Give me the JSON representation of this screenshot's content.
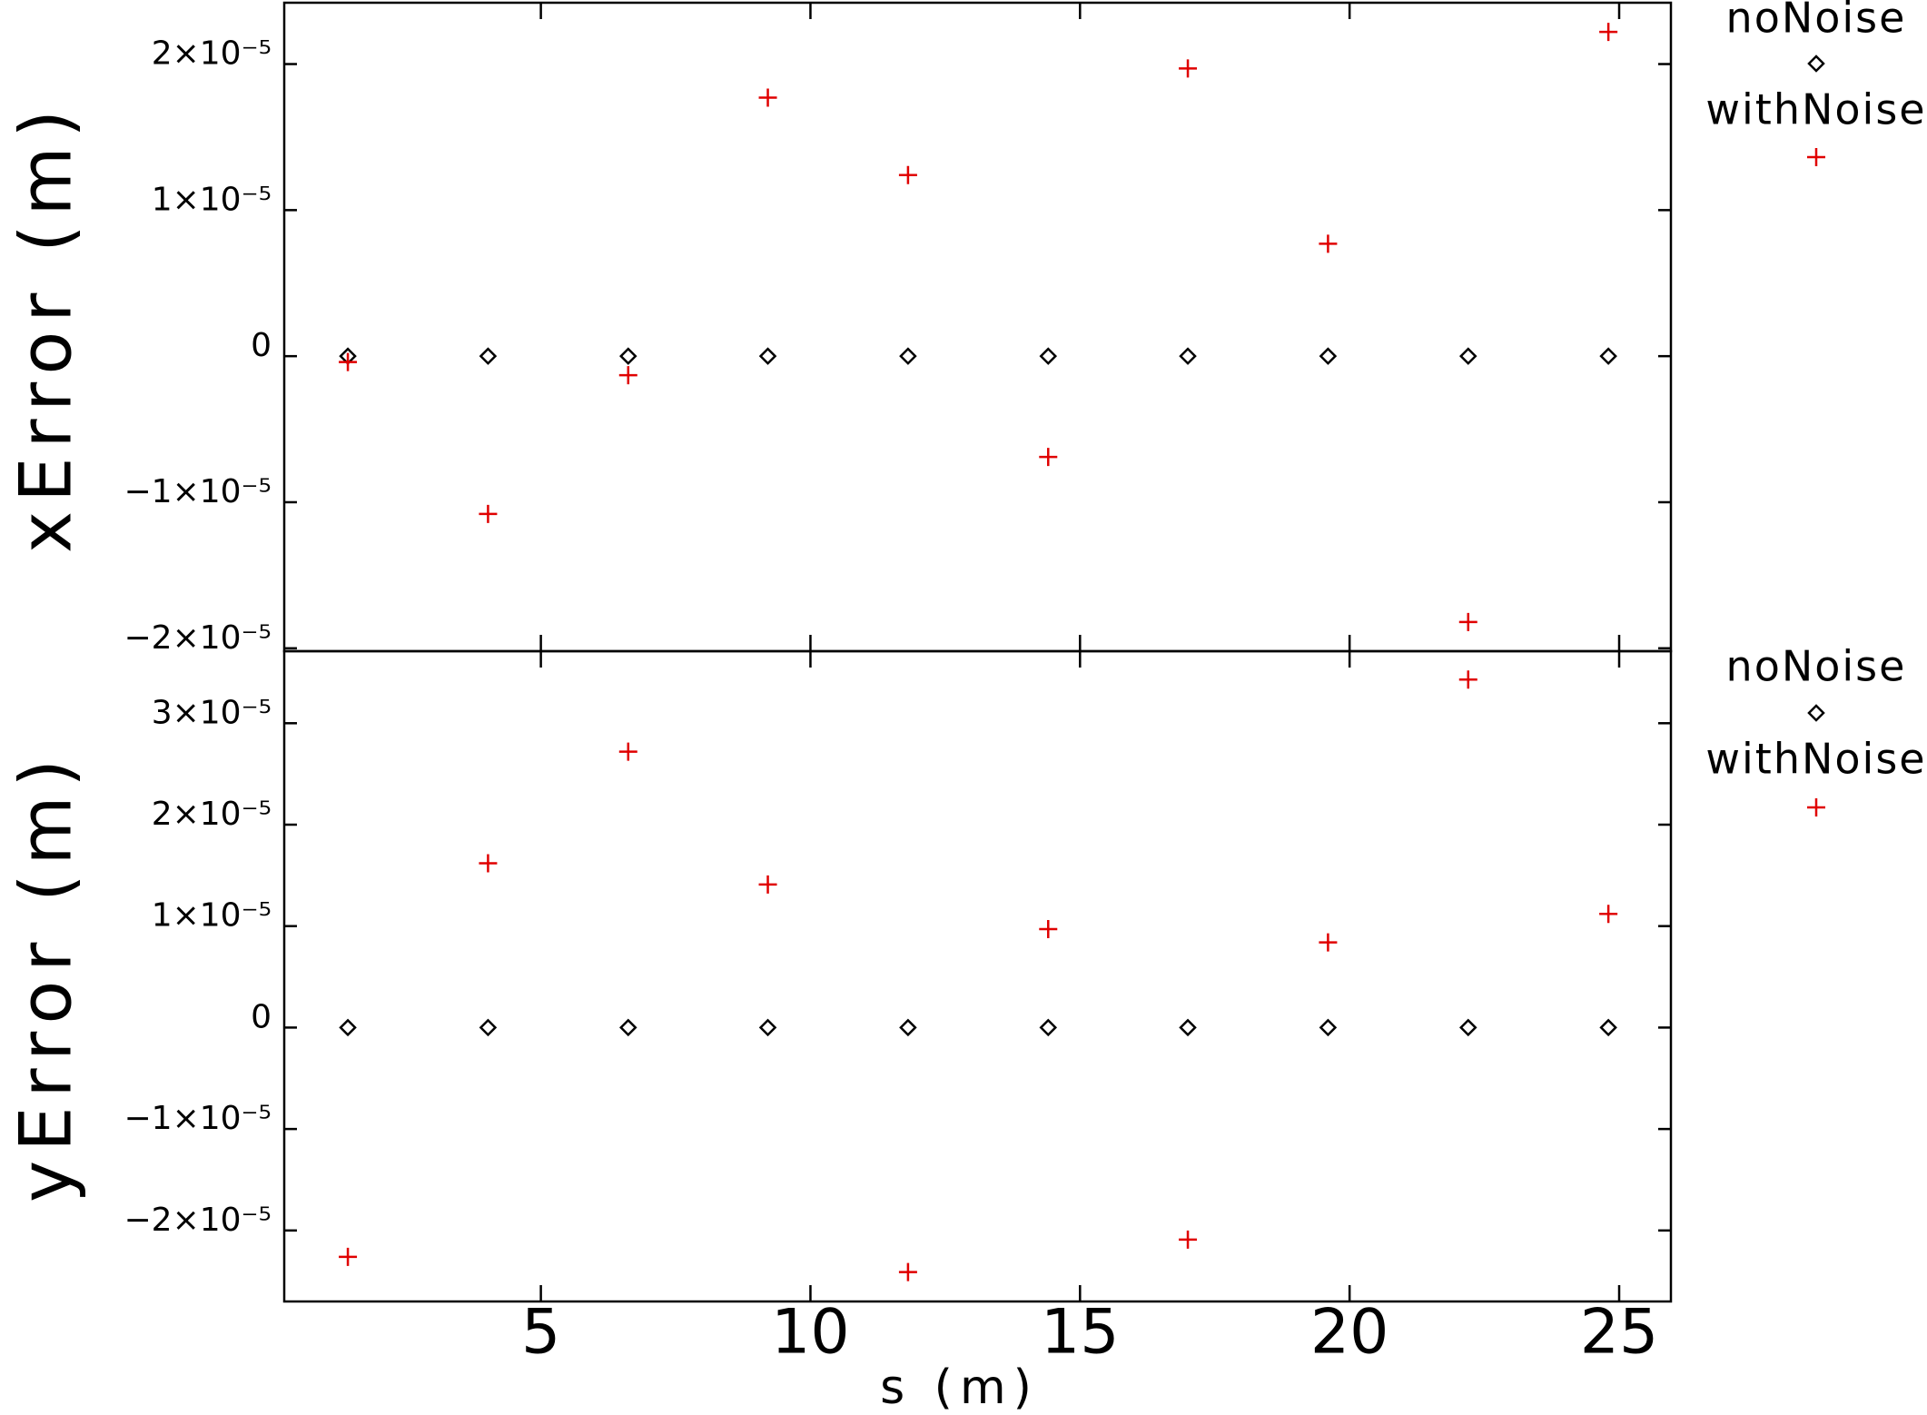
{
  "chart_data": [
    {
      "type": "scatter",
      "ylabel": "xError (m)",
      "legend": "right",
      "xlim": [
        0.24,
        25.96
      ],
      "xticks": [
        5,
        10,
        15,
        20,
        25
      ],
      "ylim": [
        -2.02e-05,
        2.42e-05
      ],
      "yticks": [
        {
          "value": -2e-05,
          "label": "−2×10⁻⁵"
        },
        {
          "value": -1e-05,
          "label": "−1×10⁻⁵"
        },
        0,
        {
          "value": 1e-05,
          "label": "1×10⁻⁵"
        },
        {
          "value": 2e-05,
          "label": "2×10⁻⁵"
        }
      ],
      "x": [
        1.42,
        4.02,
        6.62,
        9.21,
        11.81,
        14.41,
        17.0,
        19.6,
        22.2,
        24.8
      ],
      "series": [
        {
          "name": "noNoise",
          "color": "#000000",
          "marker": "diamond",
          "values": [
            0,
            0,
            0,
            0,
            0,
            0,
            0,
            0,
            0,
            0
          ]
        },
        {
          "name": "withNoise",
          "color": "#e00000",
          "marker": "plus",
          "values": [
            -4e-07,
            -1.08e-05,
            -1.3e-06,
            1.77e-05,
            1.24e-05,
            -6.9e-06,
            1.97e-05,
            7.7e-06,
            -1.82e-05,
            2.22e-05
          ]
        }
      ]
    },
    {
      "type": "scatter",
      "ylabel": "yError (m)",
      "xlabel": "s (m)",
      "legend": "right",
      "xlim": [
        0.24,
        25.96
      ],
      "xticks": [
        5,
        10,
        15,
        20,
        25
      ],
      "ylim": [
        -2.7e-05,
        3.71e-05
      ],
      "yticks": [
        {
          "value": -2e-05,
          "label": "−2×10⁻⁵"
        },
        {
          "value": -1e-05,
          "label": "−1×10⁻⁵"
        },
        0,
        {
          "value": 1e-05,
          "label": "1×10⁻⁵"
        },
        {
          "value": 2e-05,
          "label": "2×10⁻⁵"
        },
        {
          "value": 3e-05,
          "label": "3×10⁻⁵"
        }
      ],
      "x": [
        1.42,
        4.02,
        6.62,
        9.21,
        11.81,
        14.41,
        17.0,
        19.6,
        22.2,
        24.8
      ],
      "series": [
        {
          "name": "noNoise",
          "color": "#000000",
          "marker": "diamond",
          "values": [
            0,
            0,
            0,
            0,
            0,
            0,
            0,
            0,
            0,
            0
          ]
        },
        {
          "name": "withNoise",
          "color": "#e00000",
          "marker": "plus",
          "values": [
            -2.26e-05,
            1.62e-05,
            2.72e-05,
            1.41e-05,
            -2.41e-05,
            9.7e-06,
            -2.09e-05,
            8.4e-06,
            3.43e-05,
            1.12e-05
          ]
        }
      ]
    }
  ]
}
